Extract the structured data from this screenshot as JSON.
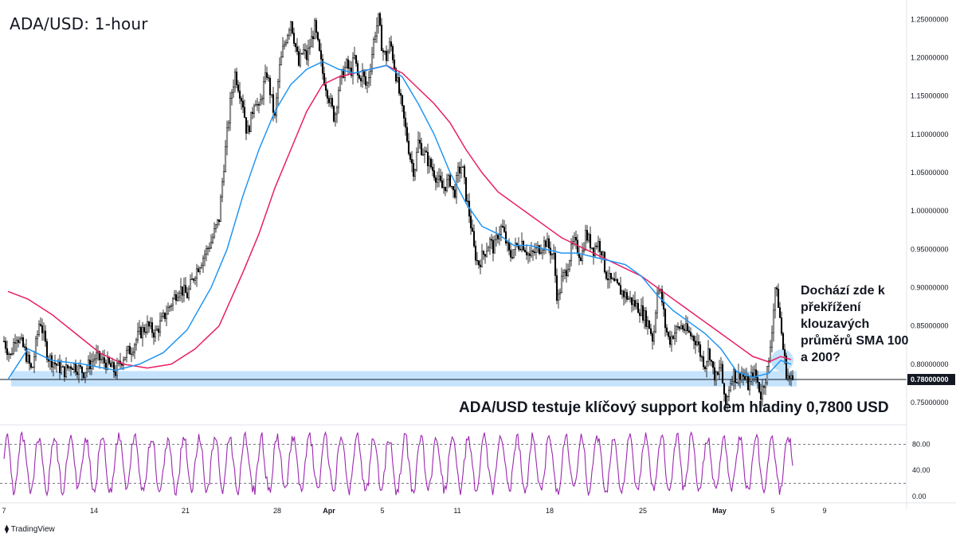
{
  "chart_data": {
    "type": "candlestick",
    "title": "ADA/USD: 1-hour",
    "price_axis": {
      "ticks": [
        "1.25000000",
        "1.20000000",
        "1.15000000",
        "1.10000000",
        "1.05000000",
        "1.00000000",
        "0.95000000",
        "0.90000000",
        "0.85000000",
        "0.80000000",
        "0.75000000"
      ],
      "range": [
        0.725,
        1.265
      ]
    },
    "current_price": {
      "label": "0.78000000",
      "value": 0.78
    },
    "support_zone": [
      0.771,
      0.791
    ],
    "time_axis": {
      "labels": [
        "7",
        "14",
        "21",
        "28",
        "Apr",
        "5",
        "11",
        "18",
        "25",
        "May",
        "5",
        "9"
      ],
      "bold": [
        "Apr",
        "May"
      ]
    },
    "price_path": [
      [
        0,
        0.83
      ],
      [
        8,
        0.81
      ],
      [
        15,
        0.84
      ],
      [
        25,
        0.82
      ],
      [
        35,
        0.79
      ],
      [
        45,
        0.86
      ],
      [
        55,
        0.81
      ],
      [
        65,
        0.8
      ],
      [
        75,
        0.79
      ],
      [
        85,
        0.8
      ],
      [
        100,
        0.79
      ],
      [
        115,
        0.81
      ],
      [
        130,
        0.8
      ],
      [
        140,
        0.79
      ],
      [
        150,
        0.81
      ],
      [
        160,
        0.82
      ],
      [
        170,
        0.84
      ],
      [
        180,
        0.85
      ],
      [
        190,
        0.84
      ],
      [
        200,
        0.86
      ],
      [
        210,
        0.88
      ],
      [
        220,
        0.9
      ],
      [
        230,
        0.89
      ],
      [
        240,
        0.92
      ],
      [
        250,
        0.94
      ],
      [
        260,
        0.96
      ],
      [
        270,
        0.99
      ],
      [
        275,
        1.05
      ],
      [
        280,
        1.1
      ],
      [
        285,
        1.15
      ],
      [
        290,
        1.18
      ],
      [
        295,
        1.16
      ],
      [
        300,
        1.14
      ],
      [
        305,
        1.1
      ],
      [
        310,
        1.12
      ],
      [
        315,
        1.15
      ],
      [
        320,
        1.13
      ],
      [
        325,
        1.16
      ],
      [
        330,
        1.18
      ],
      [
        335,
        1.15
      ],
      [
        340,
        1.12
      ],
      [
        345,
        1.18
      ],
      [
        350,
        1.21
      ],
      [
        355,
        1.23
      ],
      [
        360,
        1.25
      ],
      [
        365,
        1.22
      ],
      [
        370,
        1.19
      ],
      [
        375,
        1.21
      ],
      [
        380,
        1.2
      ],
      [
        385,
        1.22
      ],
      [
        390,
        1.24
      ],
      [
        395,
        1.21
      ],
      [
        400,
        1.18
      ],
      [
        405,
        1.16
      ],
      [
        410,
        1.14
      ],
      [
        415,
        1.12
      ],
      [
        420,
        1.16
      ],
      [
        425,
        1.18
      ],
      [
        430,
        1.19
      ],
      [
        435,
        1.18
      ],
      [
        440,
        1.2
      ],
      [
        445,
        1.17
      ],
      [
        450,
        1.18
      ],
      [
        455,
        1.16
      ],
      [
        460,
        1.19
      ],
      [
        465,
        1.23
      ],
      [
        470,
        1.25
      ],
      [
        475,
        1.21
      ],
      [
        480,
        1.2
      ],
      [
        485,
        1.22
      ],
      [
        490,
        1.19
      ],
      [
        495,
        1.16
      ],
      [
        500,
        1.13
      ],
      [
        505,
        1.1
      ],
      [
        510,
        1.07
      ],
      [
        515,
        1.05
      ],
      [
        520,
        1.09
      ],
      [
        525,
        1.08
      ],
      [
        530,
        1.07
      ],
      [
        540,
        1.05
      ],
      [
        550,
        1.03
      ],
      [
        560,
        1.04
      ],
      [
        565,
        1.02
      ],
      [
        570,
        1.05
      ],
      [
        575,
        1.06
      ],
      [
        580,
        1.02
      ],
      [
        585,
        0.99
      ],
      [
        590,
        0.95
      ],
      [
        595,
        0.93
      ],
      [
        600,
        0.94
      ],
      [
        610,
        0.96
      ],
      [
        615,
        0.95
      ],
      [
        620,
        0.97
      ],
      [
        625,
        0.98
      ],
      [
        630,
        0.96
      ],
      [
        635,
        0.94
      ],
      [
        640,
        0.95
      ],
      [
        650,
        0.96
      ],
      [
        660,
        0.94
      ],
      [
        670,
        0.95
      ],
      [
        680,
        0.96
      ],
      [
        690,
        0.94
      ],
      [
        695,
        0.88
      ],
      [
        700,
        0.91
      ],
      [
        705,
        0.92
      ],
      [
        710,
        0.94
      ],
      [
        715,
        0.96
      ],
      [
        720,
        0.95
      ],
      [
        725,
        0.94
      ],
      [
        730,
        0.97
      ],
      [
        735,
        0.96
      ],
      [
        740,
        0.95
      ],
      [
        745,
        0.96
      ],
      [
        750,
        0.95
      ],
      [
        755,
        0.92
      ],
      [
        760,
        0.91
      ],
      [
        770,
        0.9
      ],
      [
        780,
        0.89
      ],
      [
        790,
        0.88
      ],
      [
        800,
        0.87
      ],
      [
        805,
        0.86
      ],
      [
        810,
        0.85
      ],
      [
        815,
        0.83
      ],
      [
        820,
        0.9
      ],
      [
        825,
        0.89
      ],
      [
        830,
        0.85
      ],
      [
        835,
        0.83
      ],
      [
        840,
        0.84
      ],
      [
        850,
        0.85
      ],
      [
        860,
        0.84
      ],
      [
        870,
        0.83
      ],
      [
        875,
        0.81
      ],
      [
        880,
        0.8
      ],
      [
        885,
        0.82
      ],
      [
        890,
        0.79
      ],
      [
        895,
        0.78
      ],
      [
        900,
        0.8
      ],
      [
        905,
        0.74
      ],
      [
        910,
        0.77
      ],
      [
        915,
        0.79
      ],
      [
        920,
        0.78
      ],
      [
        925,
        0.79
      ],
      [
        930,
        0.78
      ],
      [
        935,
        0.77
      ],
      [
        940,
        0.79
      ],
      [
        945,
        0.78
      ],
      [
        950,
        0.76
      ],
      [
        955,
        0.78
      ],
      [
        960,
        0.8
      ],
      [
        965,
        0.86
      ],
      [
        968,
        0.9
      ],
      [
        972,
        0.88
      ],
      [
        975,
        0.85
      ],
      [
        978,
        0.82
      ],
      [
        982,
        0.79
      ],
      [
        986,
        0.78
      ],
      [
        990,
        0.78
      ]
    ],
    "sma_100": [
      [
        5,
        0.78
      ],
      [
        30,
        0.82
      ],
      [
        60,
        0.805
      ],
      [
        100,
        0.8
      ],
      [
        140,
        0.792
      ],
      [
        170,
        0.8
      ],
      [
        200,
        0.815
      ],
      [
        230,
        0.845
      ],
      [
        260,
        0.9
      ],
      [
        280,
        0.95
      ],
      [
        300,
        1.02
      ],
      [
        320,
        1.08
      ],
      [
        340,
        1.13
      ],
      [
        360,
        1.165
      ],
      [
        380,
        1.185
      ],
      [
        400,
        1.195
      ],
      [
        420,
        1.185
      ],
      [
        440,
        1.18
      ],
      [
        460,
        1.185
      ],
      [
        480,
        1.19
      ],
      [
        500,
        1.175
      ],
      [
        520,
        1.14
      ],
      [
        540,
        1.1
      ],
      [
        560,
        1.05
      ],
      [
        580,
        1.01
      ],
      [
        600,
        0.98
      ],
      [
        620,
        0.97
      ],
      [
        640,
        0.955
      ],
      [
        660,
        0.955
      ],
      [
        680,
        0.95
      ],
      [
        700,
        0.945
      ],
      [
        720,
        0.945
      ],
      [
        740,
        0.94
      ],
      [
        760,
        0.935
      ],
      [
        780,
        0.93
      ],
      [
        800,
        0.915
      ],
      [
        820,
        0.89
      ],
      [
        840,
        0.87
      ],
      [
        860,
        0.855
      ],
      [
        880,
        0.84
      ],
      [
        900,
        0.82
      ],
      [
        920,
        0.79
      ],
      [
        940,
        0.783
      ],
      [
        960,
        0.788
      ],
      [
        975,
        0.805
      ],
      [
        988,
        0.8
      ]
    ],
    "sma_200": [
      [
        5,
        0.895
      ],
      [
        30,
        0.885
      ],
      [
        60,
        0.865
      ],
      [
        90,
        0.84
      ],
      [
        120,
        0.815
      ],
      [
        150,
        0.8
      ],
      [
        180,
        0.795
      ],
      [
        210,
        0.8
      ],
      [
        240,
        0.82
      ],
      [
        270,
        0.85
      ],
      [
        300,
        0.92
      ],
      [
        320,
        0.97
      ],
      [
        340,
        1.03
      ],
      [
        360,
        1.08
      ],
      [
        380,
        1.13
      ],
      [
        400,
        1.165
      ],
      [
        420,
        1.175
      ],
      [
        440,
        1.18
      ],
      [
        460,
        1.185
      ],
      [
        480,
        1.19
      ],
      [
        500,
        1.18
      ],
      [
        520,
        1.16
      ],
      [
        540,
        1.14
      ],
      [
        560,
        1.115
      ],
      [
        580,
        1.08
      ],
      [
        600,
        1.05
      ],
      [
        620,
        1.025
      ],
      [
        640,
        1.01
      ],
      [
        660,
        0.995
      ],
      [
        680,
        0.98
      ],
      [
        700,
        0.965
      ],
      [
        720,
        0.955
      ],
      [
        740,
        0.945
      ],
      [
        760,
        0.935
      ],
      [
        780,
        0.925
      ],
      [
        800,
        0.915
      ],
      [
        820,
        0.9
      ],
      [
        840,
        0.885
      ],
      [
        860,
        0.87
      ],
      [
        880,
        0.855
      ],
      [
        900,
        0.84
      ],
      [
        920,
        0.825
      ],
      [
        940,
        0.81
      ],
      [
        960,
        0.803
      ],
      [
        975,
        0.81
      ],
      [
        988,
        0.806
      ]
    ],
    "oscillator": {
      "ticks": [
        "80.00",
        "40.00",
        "0.00"
      ],
      "levels": [
        80,
        20
      ],
      "range": [
        -5,
        105
      ]
    },
    "series_colors": {
      "price": "#000000",
      "sma_100": "#2196f3",
      "sma_200": "#e91e63",
      "oscillator": "#9c27b0",
      "zone": "#bbdefb"
    }
  },
  "annotations": {
    "crossover_question": "Dochází zde k překřížení klouzavých průměrů SMA 100 a 200?",
    "support_text": "ADA/USD testuje klíčový support kolem hladiny 0,7800 USD"
  },
  "footer": {
    "brand": "TradingView"
  }
}
